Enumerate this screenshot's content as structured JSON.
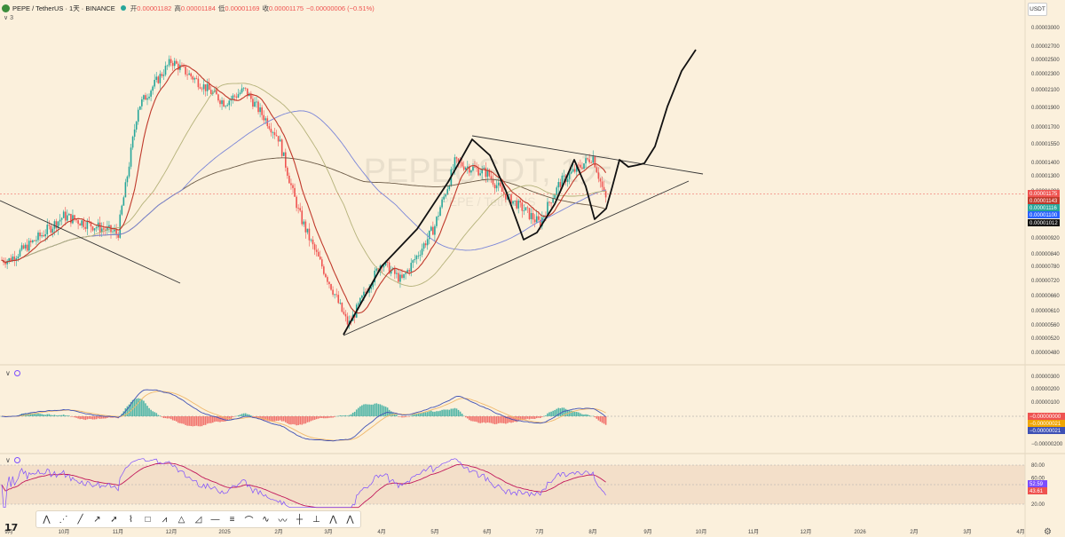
{
  "header": {
    "symbol": "PEPE / TetherUS · 1天 · BINANCE",
    "open_label": "开",
    "open": "0.00001182",
    "high_label": "高",
    "high": "0.00001184",
    "low_label": "低",
    "low": "0.00001169",
    "close_label": "收",
    "close": "0.00001175",
    "change": "−0.00000006 (−0.51%)",
    "collapse_count": "3",
    "currency": "USDT"
  },
  "watermark": {
    "main": "PEPEUSDT, 1天",
    "sub": "PEPE / TetherUS"
  },
  "colors": {
    "background": "#fbf0dc",
    "up": "#26a69a",
    "down": "#ef5350",
    "ma_red": "#c0392b",
    "ma_olive": "#b5b27a",
    "ma_blue": "#7b86d8",
    "ma_dark": "#6b5a46",
    "macd_line": "#3f51b5",
    "signal_line": "#f0b86a",
    "rsi_line": "#c2185b"
  },
  "chart_data": [
    {
      "type": "candlestick",
      "title": "PEPE / TetherUS · 1天 · BINANCE",
      "x_ticks": [
        "9月",
        "10月",
        "11月",
        "12月",
        "2025",
        "2月",
        "3月",
        "4月",
        "5月",
        "6月",
        "7月",
        "8月",
        "9月",
        "10月",
        "11月",
        "12月",
        "2026",
        "2月",
        "3月",
        "4月"
      ],
      "y_ticks": [
        "0.00003000",
        "0.00002700",
        "0.00002500",
        "0.00002300",
        "0.00002100",
        "0.00001900",
        "0.00001700",
        "0.00001550",
        "0.00001400",
        "0.00001300",
        "0.00001200",
        "0.00001090",
        "0.00000920",
        "0.00000840",
        "0.00000780",
        "0.00000720",
        "0.00000660",
        "0.00000610",
        "0.00000560",
        "0.00000520",
        "0.00000480"
      ],
      "price_path": [
        [
          "9月",
          8.1e-06
        ],
        [
          "10月",
          1.03e-05
        ],
        [
          "11月",
          9.4e-06
        ],
        [
          "11月",
          1.9e-05
        ],
        [
          "12月",
          2.48e-05
        ],
        [
          "2025",
          1.95e-05
        ],
        [
          "2025",
          2.1e-05
        ],
        [
          "2月",
          1.6e-05
        ],
        [
          "2月",
          1.05e-05
        ],
        [
          "3月",
          7.2e-06
        ],
        [
          "3月",
          5.6e-06
        ],
        [
          "4月",
          8e-06
        ],
        [
          "4月",
          7.2e-06
        ],
        [
          "5月",
          9.8e-06
        ],
        [
          "5月",
          1.4e-05
        ],
        [
          "6月",
          1.32e-05
        ],
        [
          "6月",
          1.15e-05
        ],
        [
          "7月",
          9.9e-06
        ],
        [
          "7月",
          1.25e-05
        ],
        [
          "8月",
          1.45e-05
        ],
        [
          "8月",
          1.13e-05
        ],
        [
          "8月",
          1.175e-05
        ]
      ],
      "last_price": "0.00001175",
      "price_labels": [
        {
          "value": "0.00001175",
          "color": "#ef5350"
        },
        {
          "value": "0.00001143",
          "color": "#c0392b"
        },
        {
          "value": "0.00001116",
          "color": "#26a69a"
        },
        {
          "value": "0.00001100",
          "color": "#2962ff"
        },
        {
          "value": "0.00001012",
          "color": "#111111"
        }
      ]
    },
    {
      "type": "histogram",
      "title": "MACD",
      "y_ticks": [
        "0.00000300",
        "0.00000200",
        "0.00000100",
        "0.00000000",
        "−0.00000100",
        "−0.00000200"
      ],
      "price_labels": [
        {
          "value": "−0.00000000",
          "color": "#ef5350"
        },
        {
          "value": "−0.00000021",
          "color": "#f0a500"
        },
        {
          "value": "−0.00000021",
          "color": "#3f51b5"
        }
      ]
    },
    {
      "type": "line",
      "title": "RSI",
      "y_ticks": [
        "80.00",
        "60.00",
        "40.00",
        "20.00"
      ],
      "price_labels": [
        {
          "value": "52.59",
          "color": "#7c4dff"
        },
        {
          "value": "43.61",
          "color": "#ef5350"
        }
      ]
    }
  ],
  "toolbar": {
    "tools": [
      "pattern-xabcd",
      "pattern-cypher",
      "trend-line",
      "ray",
      "arrow",
      "path",
      "rectangle",
      "pattern-abcd",
      "pattern-triangle",
      "triangle",
      "horizontal-line",
      "fib-retracement",
      "pattern-head-shoulders",
      "pattern-elliott",
      "pattern-wave",
      "crosshair",
      "long-position",
      "pattern-3drives",
      "elliott-impulse"
    ]
  }
}
